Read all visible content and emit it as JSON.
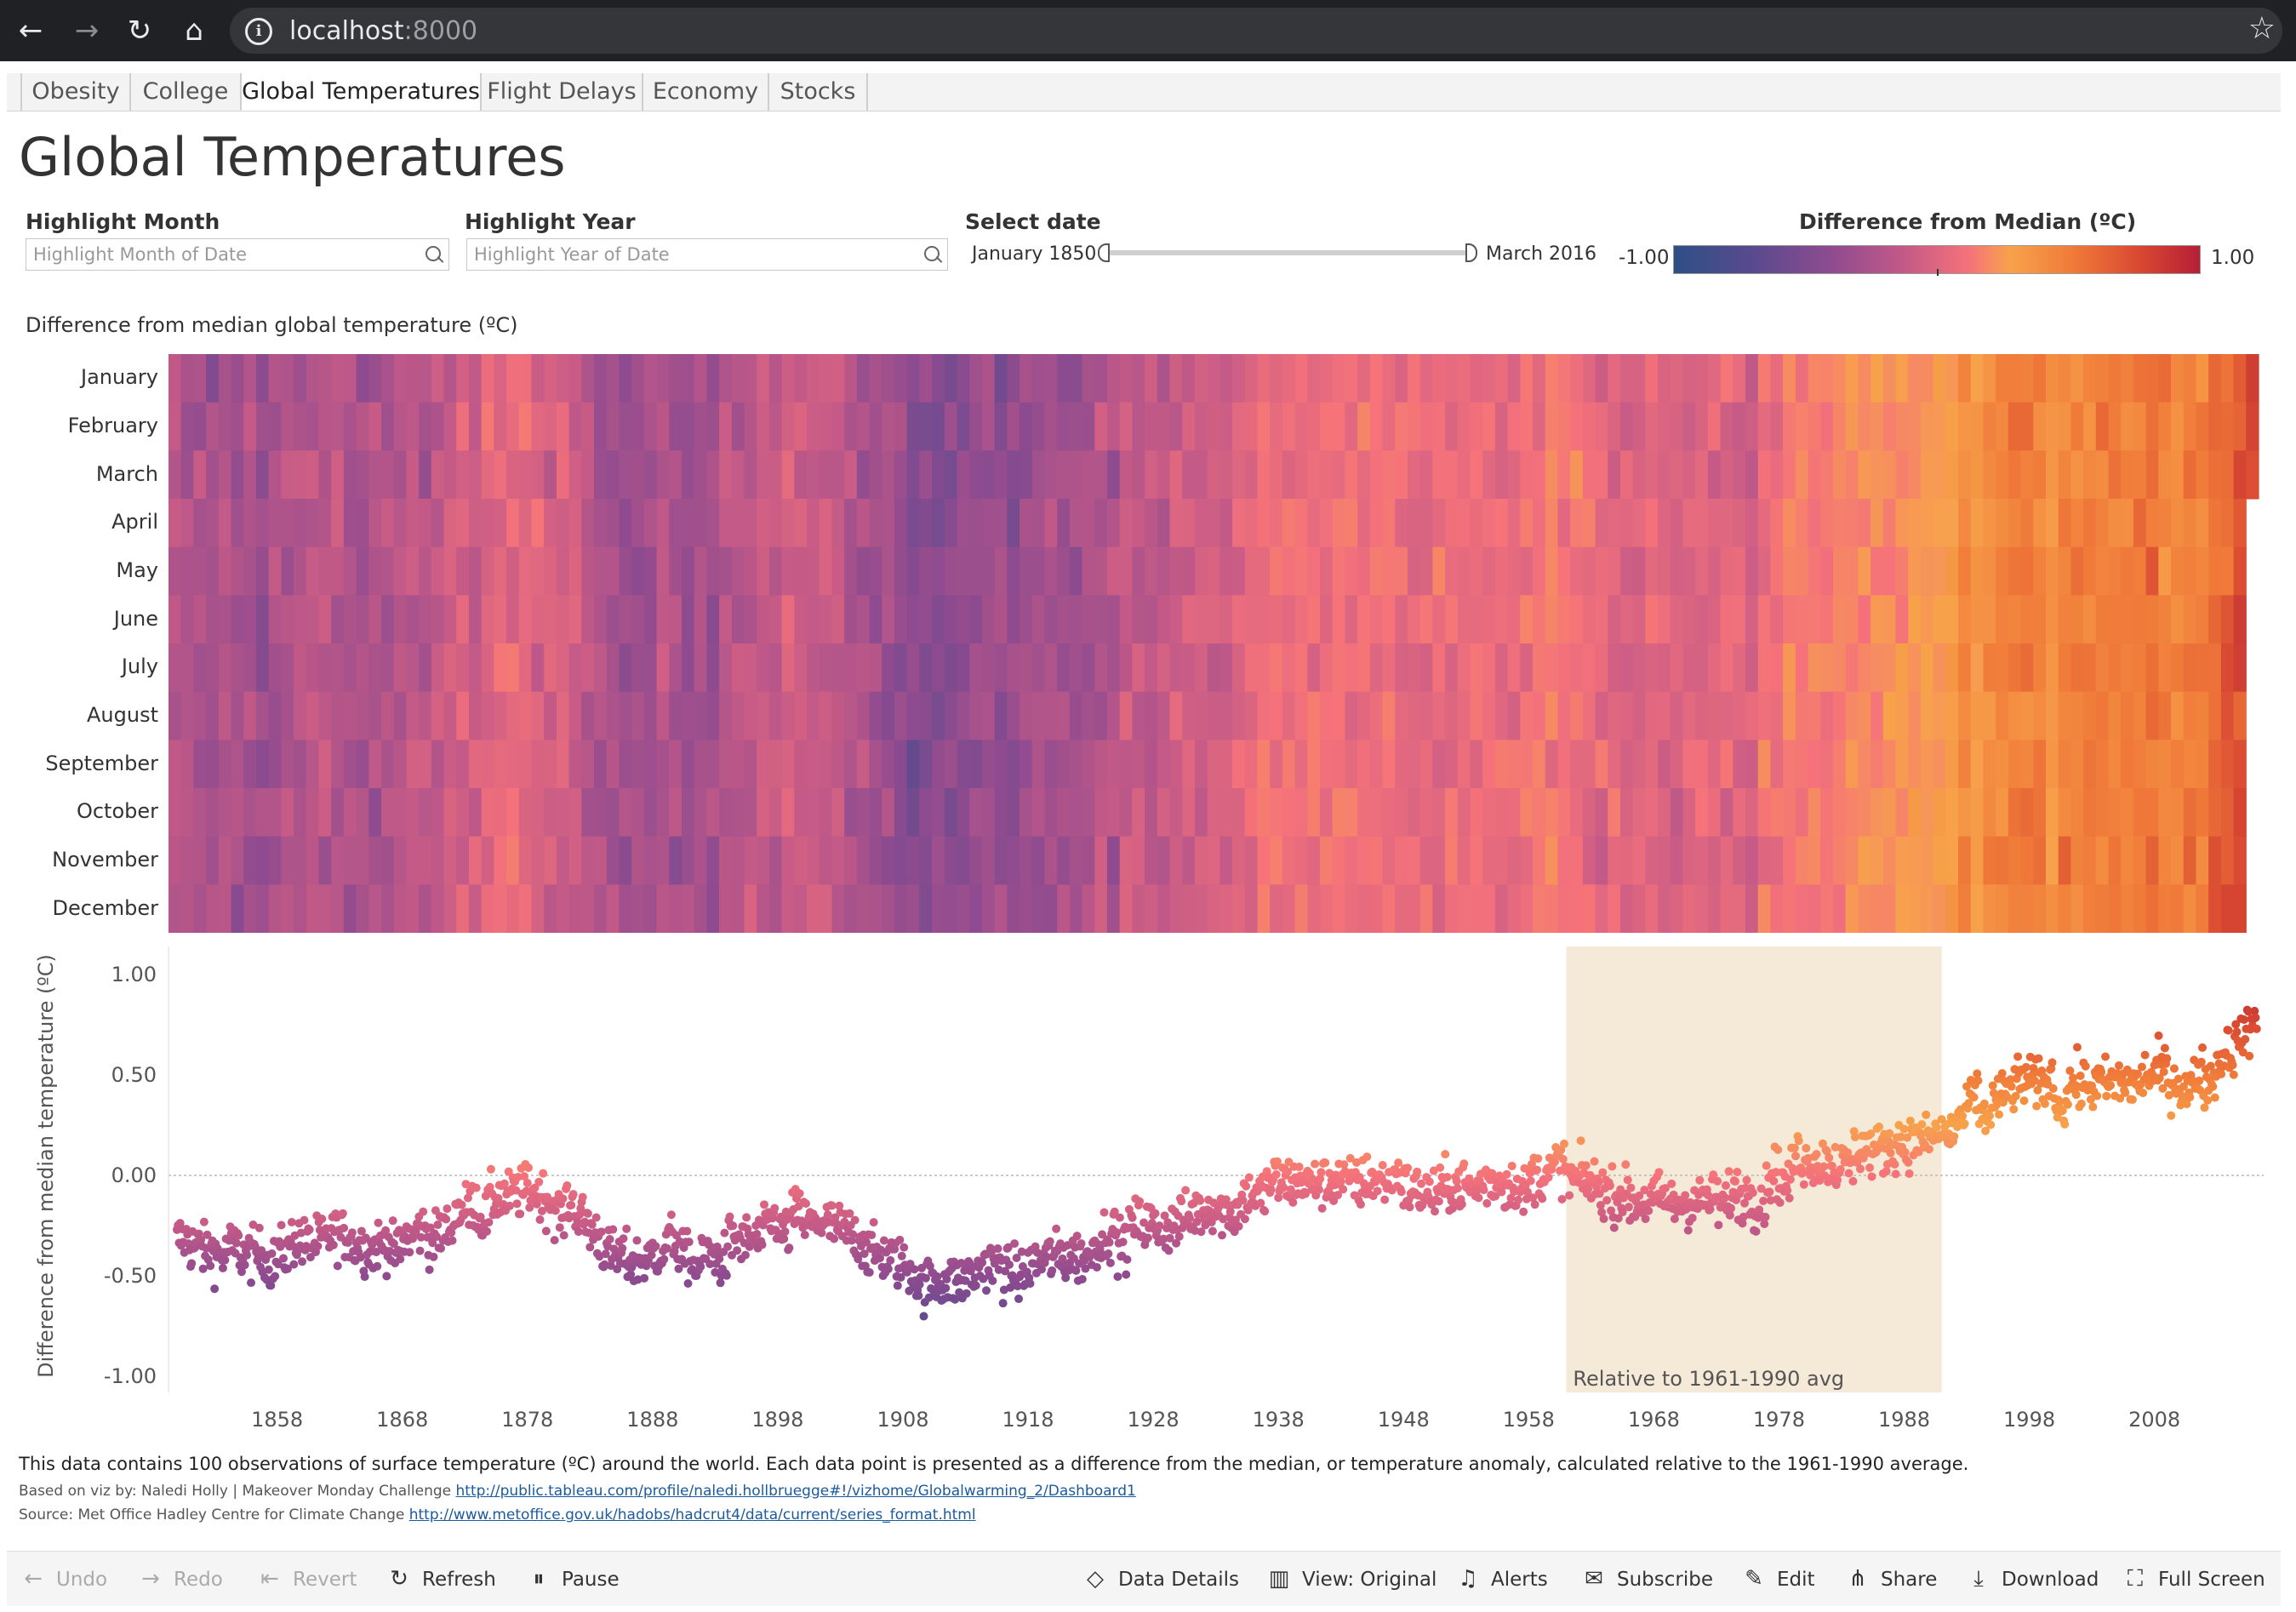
{
  "browser": {
    "url_host": "localhost",
    "url_port": ":8000"
  },
  "tabs": [
    "Obesity",
    "College",
    "Global Temperatures",
    "Flight Delays",
    "Economy",
    "Stocks"
  ],
  "active_tab": "Global Temperatures",
  "page_title": "Global Temperatures",
  "filters": {
    "month": {
      "label": "Highlight Month",
      "placeholder": "Highlight Month of Date"
    },
    "year": {
      "label": "Highlight Year",
      "placeholder": "Highlight Year of Date"
    },
    "date": {
      "label": "Select date",
      "start": "January 1850",
      "end": "March 2016"
    }
  },
  "legend": {
    "title": "Difference from Median (ºC)",
    "min_label": "-1.00",
    "max_label": "1.00",
    "min": -1.0,
    "max": 1.0,
    "colors": [
      "#2d4f86",
      "#5c4a8e",
      "#8f4b8f",
      "#c45a87",
      "#f5727a",
      "#f7a24b",
      "#f07a39",
      "#d94a32",
      "#b51f36"
    ]
  },
  "heatmap": {
    "title": "Difference from median global temperature (ºC)",
    "months": [
      "January",
      "February",
      "March",
      "April",
      "May",
      "June",
      "July",
      "August",
      "September",
      "October",
      "November",
      "December"
    ]
  },
  "chart_data": {
    "type": "scatter",
    "ylabel": "Difference from median temperature (ºC)",
    "x_range": [
      1850,
      2016
    ],
    "ylim": [
      -1.0,
      1.1
    ],
    "y_ticks": [
      "1.00",
      "0.50",
      "0.00",
      "-0.50",
      "-1.00"
    ],
    "y_tick_values": [
      1.0,
      0.5,
      0.0,
      -0.5,
      -1.0
    ],
    "x_ticks": [
      "1858",
      "1868",
      "1878",
      "1888",
      "1898",
      "1908",
      "1918",
      "1928",
      "1938",
      "1948",
      "1958",
      "1968",
      "1978",
      "1988",
      "1998",
      "2008"
    ],
    "x_tick_values": [
      1858,
      1868,
      1878,
      1888,
      1898,
      1908,
      1918,
      1928,
      1938,
      1948,
      1958,
      1968,
      1978,
      1988,
      1998,
      2008
    ],
    "reference_band": {
      "label": "Relative to 1961-1990 avg",
      "x0": 1961,
      "x1": 1991,
      "color": "#f5e9d8"
    },
    "trend_anchors": [
      {
        "year": 1850,
        "value": -0.35
      },
      {
        "year": 1860,
        "value": -0.35
      },
      {
        "year": 1870,
        "value": -0.3
      },
      {
        "year": 1878,
        "value": -0.05
      },
      {
        "year": 1885,
        "value": -0.4
      },
      {
        "year": 1895,
        "value": -0.35
      },
      {
        "year": 1900,
        "value": -0.22
      },
      {
        "year": 1910,
        "value": -0.5
      },
      {
        "year": 1918,
        "value": -0.45
      },
      {
        "year": 1930,
        "value": -0.25
      },
      {
        "year": 1940,
        "value": 0.02
      },
      {
        "year": 1945,
        "value": 0.0
      },
      {
        "year": 1950,
        "value": -0.1
      },
      {
        "year": 1960,
        "value": 0.02
      },
      {
        "year": 1965,
        "value": -0.1
      },
      {
        "year": 1975,
        "value": -0.12
      },
      {
        "year": 1980,
        "value": 0.05
      },
      {
        "year": 1990,
        "value": 0.22
      },
      {
        "year": 1998,
        "value": 0.4
      },
      {
        "year": 2005,
        "value": 0.48
      },
      {
        "year": 2012,
        "value": 0.48
      },
      {
        "year": 2016,
        "value": 0.85
      }
    ],
    "spread": 0.13
  },
  "footer": {
    "description": "This data contains 100 observations of surface temperature (ºC) around the world. Each data point is presented as a difference from the median, or temperature anomaly, calculated relative to the 1961-1990 average.",
    "credit_prefix": "Based on viz by: Naledi Holly | Makeover Monday Challenge ",
    "credit_link": "http://public.tableau.com/profile/naledi.hollbruegge#!/vizhome/Globalwarming_2/Dashboard1",
    "source_prefix": "Source: Met Office Hadley Centre for Climate Change ",
    "source_link": "http://www.metoffice.gov.uk/hadobs/hadcrut4/data/current/series_format.html"
  },
  "toolbar": {
    "undo": "Undo",
    "redo": "Redo",
    "revert": "Revert",
    "refresh": "Refresh",
    "pause": "Pause",
    "data_details": "Data Details",
    "view": "View: Original",
    "alerts": "Alerts",
    "subscribe": "Subscribe",
    "edit": "Edit",
    "share": "Share",
    "download": "Download",
    "full_screen": "Full Screen"
  }
}
